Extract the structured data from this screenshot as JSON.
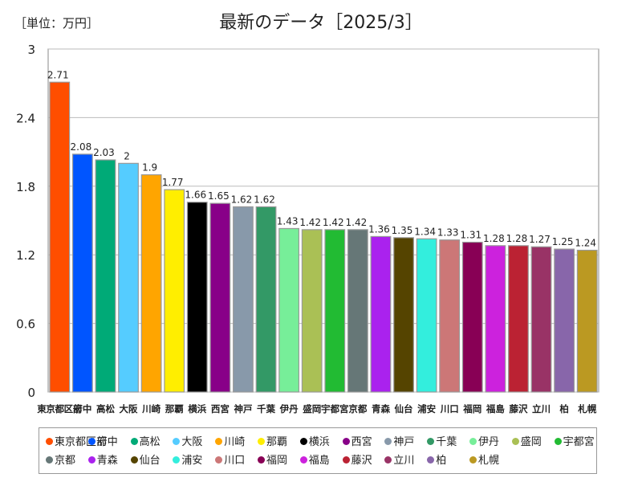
{
  "header": {
    "unit_label": "［単位：万円］",
    "title": "最新のデータ［2025/3］"
  },
  "chart_data": {
    "type": "bar",
    "title": "最新のデータ［2025/3］",
    "ylabel": "［単位：万円］",
    "xlabel": "",
    "ylim": [
      0,
      3
    ],
    "yticks": [
      0,
      0.6,
      1.2,
      1.8,
      2.4,
      3
    ],
    "ytick_labels": [
      "0",
      "0.6",
      "1.2",
      "1.8",
      "2.4",
      "3"
    ],
    "grid": true,
    "categories": [
      "東京都区部",
      "府中",
      "高松",
      "大阪",
      "川崎",
      "那覇",
      "横浜",
      "西宮",
      "神戸",
      "千葉",
      "伊丹",
      "盛岡",
      "宇都宮",
      "京都",
      "青森",
      "仙台",
      "浦安",
      "川口",
      "福岡",
      "福島",
      "藤沢",
      "立川",
      "柏",
      "札幌"
    ],
    "values": [
      2.71,
      2.08,
      2.03,
      2,
      1.9,
      1.77,
      1.66,
      1.65,
      1.62,
      1.62,
      1.43,
      1.42,
      1.42,
      1.42,
      1.36,
      1.35,
      1.34,
      1.33,
      1.31,
      1.28,
      1.28,
      1.27,
      1.25,
      1.24
    ],
    "value_labels": [
      "2.71",
      "2.08",
      "2.03",
      "2",
      "1.9",
      "1.77",
      "1.66",
      "1.65",
      "1.62",
      "1.62",
      "1.43",
      "1.42",
      "1.42",
      "1.42",
      "1.36",
      "1.35",
      "1.34",
      "1.33",
      "1.31",
      "1.28",
      "1.28",
      "1.27",
      "1.25",
      "1.24"
    ],
    "colors": [
      "#ff4e00",
      "#0055ff",
      "#00aa77",
      "#55ccff",
      "#ffa500",
      "#ffee00",
      "#000000",
      "#880088",
      "#8899aa",
      "#339966",
      "#77ee99",
      "#aac055",
      "#22bb33",
      "#667777",
      "#aa22ee",
      "#554400",
      "#33eedd",
      "#cc7777",
      "#880055",
      "#cc22dd",
      "#bb2233",
      "#993366",
      "#8866aa",
      "#bb9922"
    ],
    "legend_position": "bottom"
  }
}
